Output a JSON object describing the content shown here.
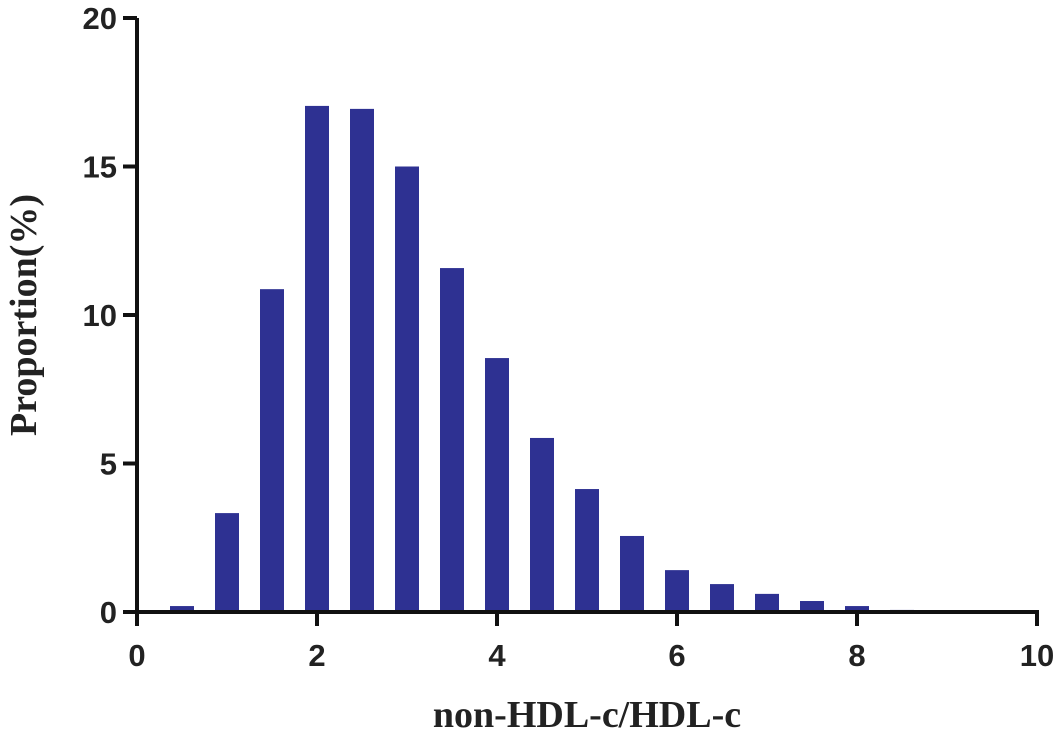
{
  "chart_data": {
    "type": "bar",
    "x_label": "non-HDL-c/HDL-c",
    "y_label": "Proportion(%)",
    "x": [
      0.5,
      1,
      1.5,
      2,
      2.5,
      3,
      3.5,
      4,
      4.5,
      5,
      5.5,
      6,
      6.5,
      7,
      7.5,
      8,
      8.5
    ],
    "values": [
      0.2,
      3.33,
      10.87,
      17.04,
      16.94,
      15.0,
      11.58,
      8.55,
      5.86,
      4.14,
      2.56,
      1.41,
      0.94,
      0.61,
      0.37,
      0.2,
      0.07
    ],
    "color": "#2e3192",
    "xlim": [
      0,
      10
    ],
    "xticks": [
      0,
      2,
      4,
      6,
      8,
      10
    ],
    "ylim": [
      0,
      20
    ],
    "yticks": [
      0,
      5,
      10,
      15,
      20
    ],
    "grid": false
  }
}
